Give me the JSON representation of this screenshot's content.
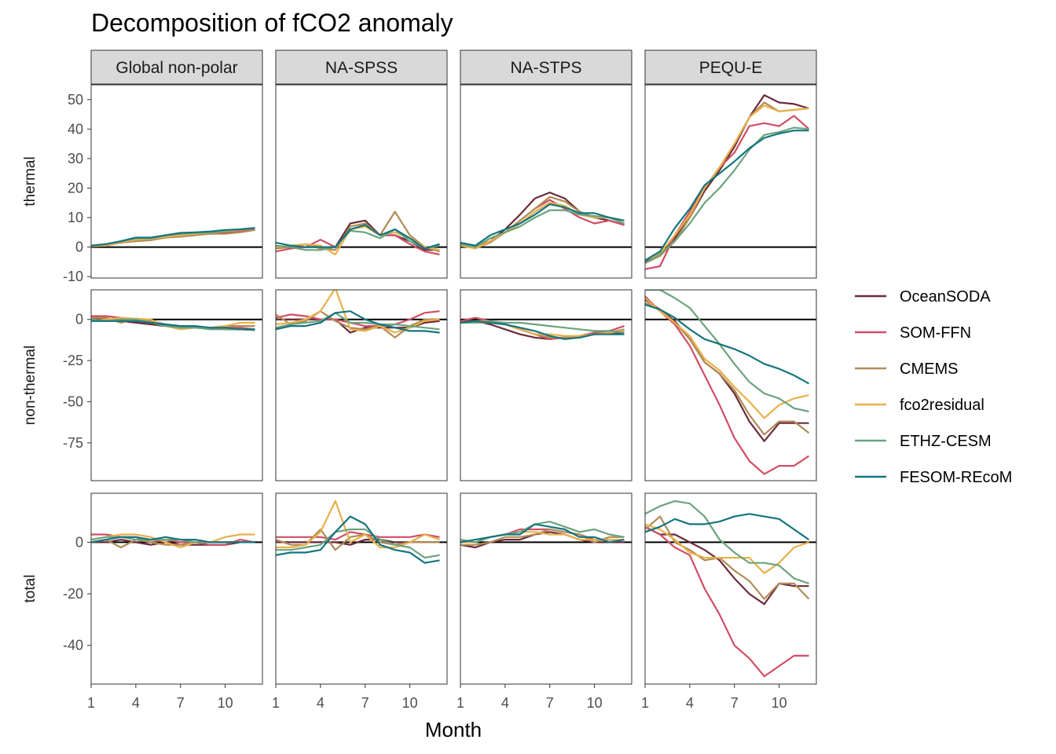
{
  "chart_data": {
    "type": "line",
    "title": "Decomposition of fCO2 anomaly",
    "xlabel": "Month",
    "ylabel": "",
    "x": [
      1,
      2,
      3,
      4,
      5,
      6,
      7,
      8,
      9,
      10,
      11,
      12
    ],
    "x_ticks": [
      "1",
      "4",
      "7",
      "10"
    ],
    "x_tick_values": [
      1,
      4,
      7,
      10
    ],
    "facet_columns": [
      "Global non-polar",
      "NA-SPSS",
      "NA-STPS",
      "PEQU-E"
    ],
    "facet_rows": [
      {
        "label": "thermal",
        "ylim": [
          -10.5,
          55
        ],
        "yticks": [
          50,
          40,
          30,
          20,
          10,
          0,
          -10
        ],
        "ytick_labels": [
          "50",
          "40",
          "30",
          "20",
          "10",
          "0",
          "-10"
        ]
      },
      {
        "label": "non-thermal",
        "ylim": [
          -98,
          18
        ],
        "yticks": [
          0,
          -25,
          -50,
          -75
        ],
        "ytick_labels": [
          "0",
          "-25",
          "-50",
          "-75"
        ]
      },
      {
        "label": "total",
        "ylim": [
          -55,
          19
        ],
        "yticks": [
          0,
          -20,
          -40
        ],
        "ytick_labels": [
          "0",
          "-20",
          "-40"
        ]
      }
    ],
    "legend": {
      "position": "right"
    },
    "grid": false,
    "series": [
      {
        "name": "OceanSODA",
        "color": "#6b2b3a"
      },
      {
        "name": "SOM-FFN",
        "color": "#d04e64"
      },
      {
        "name": "CMEMS",
        "color": "#b08c56"
      },
      {
        "name": "fco2residual",
        "color": "#e9b04a"
      },
      {
        "name": "ETHZ-CESM",
        "color": "#6ba37d"
      },
      {
        "name": "FESOM-REcoM",
        "color": "#14757f"
      }
    ],
    "panels": [
      [
        {
          "OceanSODA": [
            0.5,
            0.8,
            1.5,
            2.5,
            2.8,
            3.5,
            4,
            4.2,
            4.8,
            5,
            5.2,
            6
          ],
          "SOM-FFN": [
            0.5,
            1,
            1.5,
            2.5,
            3,
            3.8,
            4.2,
            4.5,
            5,
            5.2,
            5.5,
            6.2
          ],
          "CMEMS": [
            0.3,
            0.5,
            1.5,
            2,
            2.3,
            3.2,
            3.5,
            4,
            4.5,
            4.5,
            5,
            5.8
          ],
          "fco2residual": [
            0.3,
            0.5,
            1.8,
            2.5,
            2.8,
            3.5,
            4,
            4.5,
            5,
            5.3,
            5.8,
            6.5
          ],
          "ETHZ-CESM": [
            0.5,
            1,
            2,
            3,
            3,
            4,
            4.5,
            4.8,
            5,
            5.5,
            6,
            6.5
          ],
          "FESOM-REcoM": [
            0.5,
            1,
            2,
            3.2,
            3.2,
            4,
            4.8,
            5,
            5.3,
            5.8,
            6,
            6.5
          ]
        },
        {
          "OceanSODA": [
            0,
            0,
            1,
            0,
            0,
            8,
            9,
            4,
            4,
            2,
            -1,
            -1
          ],
          "SOM-FFN": [
            -1.5,
            -0.5,
            0,
            2.5,
            0,
            6,
            7,
            4,
            4,
            1,
            -1.5,
            -2.5
          ],
          "CMEMS": [
            -0.5,
            0,
            1,
            -0.5,
            -1,
            7,
            8,
            4,
            12,
            4,
            0,
            -1.5
          ],
          "fco2residual": [
            0,
            0.5,
            1,
            0.5,
            -2.5,
            6,
            7,
            4,
            5,
            3,
            0,
            -1
          ],
          "ETHZ-CESM": [
            0.5,
            0,
            -1,
            -1,
            0,
            5.5,
            5,
            3,
            6,
            2,
            -0.5,
            0.5
          ],
          "FESOM-REcoM": [
            1.5,
            0.5,
            0,
            0,
            0,
            6,
            7.5,
            4,
            6,
            3,
            -0.5,
            1
          ]
        },
        {
          "OceanSODA": [
            1,
            0,
            2,
            6,
            11,
            16.5,
            18.5,
            16.5,
            12,
            10,
            9,
            7.5
          ],
          "SOM-FFN": [
            1,
            0,
            2,
            5,
            9,
            13,
            16,
            13,
            10,
            8,
            9,
            7.5
          ],
          "CMEMS": [
            1,
            -0.5,
            1.5,
            5,
            9,
            13,
            17,
            15.5,
            12,
            10,
            10,
            8
          ],
          "fco2residual": [
            0.5,
            -0.5,
            2,
            5,
            8,
            12,
            15,
            14,
            11,
            10,
            10,
            9
          ],
          "ETHZ-CESM": [
            1,
            0,
            3,
            5,
            7,
            10,
            12.5,
            12.5,
            11,
            10.5,
            10,
            8
          ],
          "FESOM-REcoM": [
            1.5,
            0.5,
            4,
            6,
            8,
            11,
            14.5,
            13.5,
            11.5,
            11.5,
            10,
            9
          ]
        },
        {
          "OceanSODA": [
            -5,
            -3,
            3,
            10,
            19,
            26,
            34,
            44,
            51.5,
            49,
            48.5,
            47
          ],
          "SOM-FFN": [
            -7.5,
            -6.5,
            4,
            12,
            20,
            27,
            32,
            41,
            42,
            41,
            44.5,
            40
          ],
          "CMEMS": [
            -5.5,
            -3,
            2,
            10,
            20,
            27,
            35,
            44,
            49,
            46,
            46.5,
            47
          ],
          "fco2residual": [
            -4.5,
            -2,
            4,
            11,
            20,
            27,
            35,
            44,
            48,
            46,
            46.5,
            47
          ],
          "ETHZ-CESM": [
            -5.5,
            -2.5,
            2,
            8,
            15,
            20,
            26,
            33,
            38,
            39,
            40.5,
            40
          ],
          "FESOM-REcoM": [
            -4.5,
            -1.5,
            6.5,
            13,
            21,
            25,
            29,
            33.5,
            37,
            38.5,
            39.5,
            39.5
          ]
        }
      ],
      [
        {
          "OceanSODA": [
            0,
            0,
            -1,
            -2,
            -3,
            -4,
            -4.5,
            -5,
            -5.5,
            -6,
            -6,
            -6.5
          ],
          "SOM-FFN": [
            2,
            2,
            1,
            0,
            -1,
            -3,
            -4,
            -4.5,
            -5,
            -5,
            -5,
            -6
          ],
          "CMEMS": [
            1,
            1,
            -2,
            0,
            -1,
            -4,
            -5,
            -5,
            -5,
            -4,
            -4,
            -4
          ],
          "fco2residual": [
            -1,
            0,
            1,
            0.5,
            0,
            -4,
            -6,
            -5,
            -5,
            -4,
            -2,
            -2
          ],
          "ETHZ-CESM": [
            0,
            -1,
            0,
            0,
            -2,
            -4,
            -5,
            -5,
            -6,
            -6,
            -6,
            -6.5
          ],
          "FESOM-REcoM": [
            -1,
            -1,
            -1,
            -1,
            -2,
            -3,
            -4,
            -4,
            -5,
            -5,
            -6,
            -6
          ]
        },
        {
          "OceanSODA": [
            0,
            0,
            0,
            0,
            0,
            -8,
            -5,
            -5,
            -5,
            -5,
            -2,
            -1
          ],
          "SOM-FFN": [
            1,
            3,
            2,
            0,
            0,
            -2,
            -4,
            -4,
            -3,
            0,
            4,
            5
          ],
          "CMEMS": [
            3,
            -3,
            -1,
            5,
            -1,
            -5,
            -6,
            -4,
            -11,
            -4,
            0,
            0
          ],
          "fco2residual": [
            -3,
            -2,
            0,
            5,
            19,
            -6,
            -7,
            -4,
            -8,
            -5,
            -1,
            0
          ],
          "ETHZ-CESM": [
            -5,
            -3,
            -2,
            -1,
            4,
            -2,
            -2,
            -3,
            -3,
            -4,
            -5,
            -6
          ],
          "FESOM-REcoM": [
            -6,
            -4,
            -4,
            -2,
            4,
            5,
            0,
            -3,
            -5,
            -7,
            -7,
            -8
          ]
        },
        {
          "OceanSODA": [
            -1,
            -1,
            -3,
            -6,
            -9,
            -11,
            -12,
            -11,
            -11,
            -9,
            -8,
            -8
          ],
          "SOM-FFN": [
            -1,
            1,
            -1,
            -3,
            -6,
            -9,
            -12,
            -11,
            -10,
            -8,
            -7,
            -4
          ],
          "CMEMS": [
            -2,
            -2,
            -2,
            -3,
            -6,
            -9,
            -11,
            -11,
            -10,
            -9,
            -8,
            -6
          ],
          "fco2residual": [
            -2,
            -1,
            -1,
            -3,
            -6,
            -9,
            -9,
            -10,
            -10,
            -9,
            -8,
            -7
          ],
          "ETHZ-CESM": [
            -2,
            -2,
            -1,
            -2,
            -2,
            -3,
            -4,
            -5,
            -6,
            -7,
            -7,
            -8
          ],
          "FESOM-REcoM": [
            -2,
            -1,
            -2,
            -3,
            -5,
            -7,
            -10,
            -12,
            -11,
            -9,
            -9,
            -9
          ]
        },
        {
          "OceanSODA": [
            12,
            6,
            -1,
            -12,
            -26,
            -33,
            -45,
            -62,
            -74,
            -63,
            -63,
            -63
          ],
          "SOM-FFN": [
            14,
            5,
            -3,
            -16,
            -34,
            -52,
            -72,
            -86,
            -94,
            -89,
            -89,
            -83
          ],
          "CMEMS": [
            10,
            6,
            -2,
            -12,
            -26,
            -33,
            -43,
            -58,
            -70,
            -62,
            -62,
            -69
          ],
          "fco2residual": [
            13,
            5,
            -2,
            -10,
            -24,
            -31,
            -41,
            -50,
            -60,
            -52,
            -48,
            -46
          ],
          "ETHZ-CESM": [
            18,
            18,
            13,
            7,
            -4,
            -15,
            -27,
            -38,
            -45,
            -48,
            -54,
            -56
          ],
          "FESOM-REcoM": [
            9,
            6,
            1,
            -6,
            -12,
            -15,
            -18,
            -22,
            -27,
            -30,
            -34,
            -39
          ]
        }
      ],
      [
        {
          "OceanSODA": [
            0,
            0,
            1,
            0,
            -1,
            0,
            -1,
            -1,
            -1,
            -1,
            0,
            0
          ],
          "SOM-FFN": [
            3,
            3,
            2,
            2,
            0,
            1,
            0,
            0,
            -1,
            -1,
            1,
            0
          ],
          "CMEMS": [
            0,
            1,
            -2,
            1,
            0,
            -1,
            -1,
            0,
            0,
            0,
            0,
            0
          ],
          "fco2residual": [
            1,
            2,
            3,
            3,
            2,
            0,
            -2,
            0,
            0,
            2,
            3,
            3
          ],
          "ETHZ-CESM": [
            1,
            2,
            2,
            1,
            1,
            1,
            1,
            0,
            0,
            0,
            0,
            0
          ],
          "FESOM-REcoM": [
            0,
            1,
            2,
            2,
            1,
            2,
            1,
            1,
            0,
            0,
            0,
            0
          ]
        },
        {
          "OceanSODA": [
            0,
            0,
            0,
            0,
            0,
            -1,
            1,
            1,
            0,
            0,
            0,
            0
          ],
          "SOM-FFN": [
            2,
            2,
            2,
            2,
            1,
            4,
            3,
            2,
            2,
            2,
            3,
            2
          ],
          "CMEMS": [
            1,
            -1,
            -1,
            5,
            -3,
            2,
            3,
            0,
            -1,
            0,
            0,
            0
          ],
          "fco2residual": [
            -2,
            -2,
            -1,
            4,
            16,
            0,
            3,
            -2,
            -2,
            0,
            3,
            1
          ],
          "ETHZ-CESM": [
            -3,
            -3,
            -2,
            -1,
            4,
            5,
            5,
            1,
            -1,
            -2,
            -6,
            -5
          ],
          "FESOM-REcoM": [
            -5,
            -4,
            -4,
            -3,
            4,
            10,
            7,
            -1,
            -3,
            -4,
            -8,
            -7
          ]
        },
        {
          "OceanSODA": [
            -1,
            -2,
            0,
            1,
            1,
            3,
            4,
            3,
            1,
            0,
            0,
            0
          ],
          "SOM-FFN": [
            1,
            0,
            2,
            3,
            5,
            5,
            5,
            4,
            3,
            1,
            1,
            1
          ],
          "CMEMS": [
            -1,
            -1,
            0,
            2,
            2,
            3,
            5,
            4,
            3,
            0,
            2,
            2
          ],
          "fco2residual": [
            0,
            0,
            2,
            3,
            4,
            4,
            3,
            3,
            1,
            1,
            1,
            1
          ],
          "ETHZ-CESM": [
            1,
            0,
            2,
            3,
            4,
            7,
            8,
            6,
            4,
            5,
            3,
            2
          ],
          "FESOM-REcoM": [
            0,
            1,
            2,
            3,
            3,
            7,
            6,
            5,
            2,
            2,
            0,
            1
          ]
        },
        {
          "OceanSODA": [
            6,
            3,
            3,
            0,
            -3,
            -7,
            -14,
            -20,
            -24,
            -16,
            -17,
            -17
          ],
          "SOM-FFN": [
            6,
            3,
            -2,
            -5,
            -18,
            -28,
            -40,
            -45,
            -52,
            -48,
            -44,
            -44
          ],
          "CMEMS": [
            5,
            10,
            0,
            -3,
            -7,
            -6,
            -11,
            -15,
            -22,
            -16,
            -16,
            -22
          ],
          "fco2residual": [
            7,
            5,
            1,
            -4,
            -6,
            -6,
            -6,
            -6,
            -12,
            -8,
            -2,
            0
          ],
          "ETHZ-CESM": [
            11,
            14,
            16,
            15,
            10,
            1,
            -4,
            -8,
            -8,
            -9,
            -14,
            -16
          ],
          "FESOM-REcoM": [
            4,
            6,
            9,
            7,
            7,
            8,
            10,
            11,
            10,
            9,
            5,
            1
          ]
        }
      ]
    ]
  }
}
